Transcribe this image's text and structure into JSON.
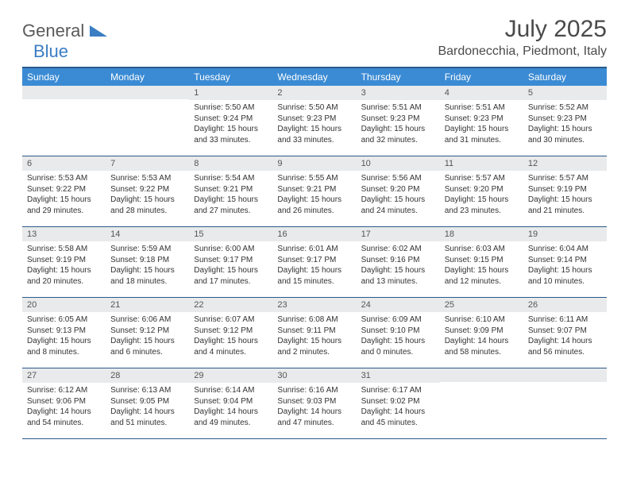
{
  "brand": {
    "part1": "General",
    "part2": "Blue"
  },
  "title": "July 2025",
  "location": "Bardonecchia, Piedmont, Italy",
  "colors": {
    "header_bg": "#3b8bd4",
    "header_text": "#ffffff",
    "border": "#2a5a8a",
    "daynum_bg": "#e9eaeb",
    "text": "#333333",
    "brand_gray": "#5a5a5a",
    "brand_blue": "#3b7dc2"
  },
  "weekdays": [
    "Sunday",
    "Monday",
    "Tuesday",
    "Wednesday",
    "Thursday",
    "Friday",
    "Saturday"
  ],
  "weeks": [
    [
      {
        "n": "",
        "sunrise": "",
        "sunset": "",
        "daylight": ""
      },
      {
        "n": "",
        "sunrise": "",
        "sunset": "",
        "daylight": ""
      },
      {
        "n": "1",
        "sunrise": "Sunrise: 5:50 AM",
        "sunset": "Sunset: 9:24 PM",
        "daylight": "Daylight: 15 hours and 33 minutes."
      },
      {
        "n": "2",
        "sunrise": "Sunrise: 5:50 AM",
        "sunset": "Sunset: 9:23 PM",
        "daylight": "Daylight: 15 hours and 33 minutes."
      },
      {
        "n": "3",
        "sunrise": "Sunrise: 5:51 AM",
        "sunset": "Sunset: 9:23 PM",
        "daylight": "Daylight: 15 hours and 32 minutes."
      },
      {
        "n": "4",
        "sunrise": "Sunrise: 5:51 AM",
        "sunset": "Sunset: 9:23 PM",
        "daylight": "Daylight: 15 hours and 31 minutes."
      },
      {
        "n": "5",
        "sunrise": "Sunrise: 5:52 AM",
        "sunset": "Sunset: 9:23 PM",
        "daylight": "Daylight: 15 hours and 30 minutes."
      }
    ],
    [
      {
        "n": "6",
        "sunrise": "Sunrise: 5:53 AM",
        "sunset": "Sunset: 9:22 PM",
        "daylight": "Daylight: 15 hours and 29 minutes."
      },
      {
        "n": "7",
        "sunrise": "Sunrise: 5:53 AM",
        "sunset": "Sunset: 9:22 PM",
        "daylight": "Daylight: 15 hours and 28 minutes."
      },
      {
        "n": "8",
        "sunrise": "Sunrise: 5:54 AM",
        "sunset": "Sunset: 9:21 PM",
        "daylight": "Daylight: 15 hours and 27 minutes."
      },
      {
        "n": "9",
        "sunrise": "Sunrise: 5:55 AM",
        "sunset": "Sunset: 9:21 PM",
        "daylight": "Daylight: 15 hours and 26 minutes."
      },
      {
        "n": "10",
        "sunrise": "Sunrise: 5:56 AM",
        "sunset": "Sunset: 9:20 PM",
        "daylight": "Daylight: 15 hours and 24 minutes."
      },
      {
        "n": "11",
        "sunrise": "Sunrise: 5:57 AM",
        "sunset": "Sunset: 9:20 PM",
        "daylight": "Daylight: 15 hours and 23 minutes."
      },
      {
        "n": "12",
        "sunrise": "Sunrise: 5:57 AM",
        "sunset": "Sunset: 9:19 PM",
        "daylight": "Daylight: 15 hours and 21 minutes."
      }
    ],
    [
      {
        "n": "13",
        "sunrise": "Sunrise: 5:58 AM",
        "sunset": "Sunset: 9:19 PM",
        "daylight": "Daylight: 15 hours and 20 minutes."
      },
      {
        "n": "14",
        "sunrise": "Sunrise: 5:59 AM",
        "sunset": "Sunset: 9:18 PM",
        "daylight": "Daylight: 15 hours and 18 minutes."
      },
      {
        "n": "15",
        "sunrise": "Sunrise: 6:00 AM",
        "sunset": "Sunset: 9:17 PM",
        "daylight": "Daylight: 15 hours and 17 minutes."
      },
      {
        "n": "16",
        "sunrise": "Sunrise: 6:01 AM",
        "sunset": "Sunset: 9:17 PM",
        "daylight": "Daylight: 15 hours and 15 minutes."
      },
      {
        "n": "17",
        "sunrise": "Sunrise: 6:02 AM",
        "sunset": "Sunset: 9:16 PM",
        "daylight": "Daylight: 15 hours and 13 minutes."
      },
      {
        "n": "18",
        "sunrise": "Sunrise: 6:03 AM",
        "sunset": "Sunset: 9:15 PM",
        "daylight": "Daylight: 15 hours and 12 minutes."
      },
      {
        "n": "19",
        "sunrise": "Sunrise: 6:04 AM",
        "sunset": "Sunset: 9:14 PM",
        "daylight": "Daylight: 15 hours and 10 minutes."
      }
    ],
    [
      {
        "n": "20",
        "sunrise": "Sunrise: 6:05 AM",
        "sunset": "Sunset: 9:13 PM",
        "daylight": "Daylight: 15 hours and 8 minutes."
      },
      {
        "n": "21",
        "sunrise": "Sunrise: 6:06 AM",
        "sunset": "Sunset: 9:12 PM",
        "daylight": "Daylight: 15 hours and 6 minutes."
      },
      {
        "n": "22",
        "sunrise": "Sunrise: 6:07 AM",
        "sunset": "Sunset: 9:12 PM",
        "daylight": "Daylight: 15 hours and 4 minutes."
      },
      {
        "n": "23",
        "sunrise": "Sunrise: 6:08 AM",
        "sunset": "Sunset: 9:11 PM",
        "daylight": "Daylight: 15 hours and 2 minutes."
      },
      {
        "n": "24",
        "sunrise": "Sunrise: 6:09 AM",
        "sunset": "Sunset: 9:10 PM",
        "daylight": "Daylight: 15 hours and 0 minutes."
      },
      {
        "n": "25",
        "sunrise": "Sunrise: 6:10 AM",
        "sunset": "Sunset: 9:09 PM",
        "daylight": "Daylight: 14 hours and 58 minutes."
      },
      {
        "n": "26",
        "sunrise": "Sunrise: 6:11 AM",
        "sunset": "Sunset: 9:07 PM",
        "daylight": "Daylight: 14 hours and 56 minutes."
      }
    ],
    [
      {
        "n": "27",
        "sunrise": "Sunrise: 6:12 AM",
        "sunset": "Sunset: 9:06 PM",
        "daylight": "Daylight: 14 hours and 54 minutes."
      },
      {
        "n": "28",
        "sunrise": "Sunrise: 6:13 AM",
        "sunset": "Sunset: 9:05 PM",
        "daylight": "Daylight: 14 hours and 51 minutes."
      },
      {
        "n": "29",
        "sunrise": "Sunrise: 6:14 AM",
        "sunset": "Sunset: 9:04 PM",
        "daylight": "Daylight: 14 hours and 49 minutes."
      },
      {
        "n": "30",
        "sunrise": "Sunrise: 6:16 AM",
        "sunset": "Sunset: 9:03 PM",
        "daylight": "Daylight: 14 hours and 47 minutes."
      },
      {
        "n": "31",
        "sunrise": "Sunrise: 6:17 AM",
        "sunset": "Sunset: 9:02 PM",
        "daylight": "Daylight: 14 hours and 45 minutes."
      },
      {
        "n": "",
        "sunrise": "",
        "sunset": "",
        "daylight": ""
      },
      {
        "n": "",
        "sunrise": "",
        "sunset": "",
        "daylight": ""
      }
    ]
  ]
}
